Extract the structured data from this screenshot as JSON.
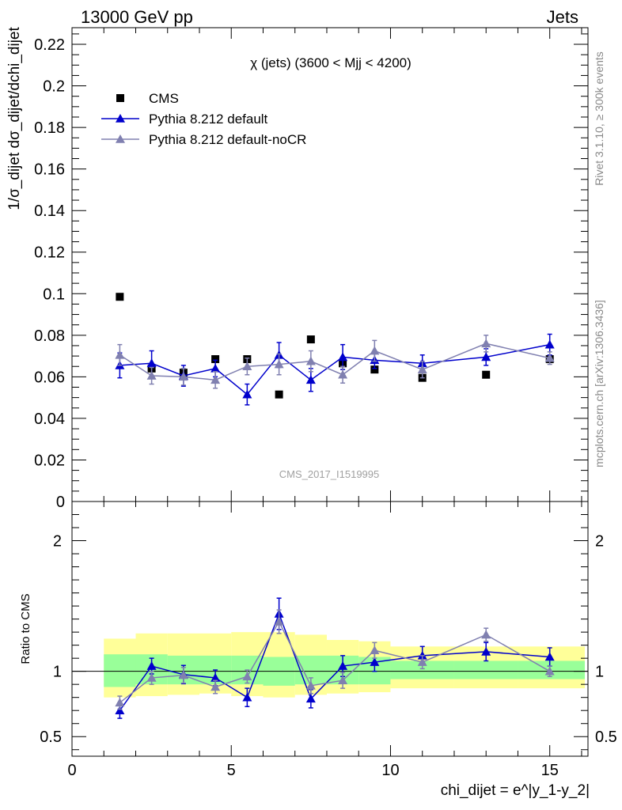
{
  "header": {
    "left": "13000 GeV pp",
    "right": "Jets"
  },
  "side_text": {
    "rivet": "Rivet 3.1.10, ≥ 300k events",
    "mcplots": "mcplots.cern.ch [arXiv:1306.3436]"
  },
  "chart_data": {
    "type": "scatter",
    "title": "χ (jets) (3600 < Mjj < 4200)",
    "watermark": "CMS_2017_I1519995",
    "xlabel": "chi_dijet = e^|y_1-y_2|",
    "ylabel": "1/σ_dijet dσ_dijet/dchi_dijet",
    "ratio_ylabel": "Ratio to CMS",
    "xlim": [
      0,
      16.2
    ],
    "ylim": [
      0,
      0.228
    ],
    "ratio_ylim": [
      0.35,
      2.3
    ],
    "x_ticks": [
      0,
      5,
      10,
      15
    ],
    "y_ticks": [
      0,
      0.02,
      0.04,
      0.06,
      0.08,
      0.1,
      0.12,
      0.14,
      0.16,
      0.18,
      0.2,
      0.22
    ],
    "y_tick_labels": [
      "0",
      "0.02",
      "0.04",
      "0.06",
      "0.08",
      "0.1",
      "0.12",
      "0.14",
      "0.16",
      "0.18",
      "0.2",
      "0.22"
    ],
    "ratio_ticks": [
      0.5,
      1,
      2
    ],
    "ratio_tick_labels": [
      "0.5",
      "1",
      "2"
    ],
    "legend_position": "top-left",
    "bins": [
      [
        1,
        2
      ],
      [
        2,
        3
      ],
      [
        3,
        4
      ],
      [
        4,
        5
      ],
      [
        5,
        6
      ],
      [
        6,
        7
      ],
      [
        7,
        8
      ],
      [
        8,
        9
      ],
      [
        9,
        10
      ],
      [
        10,
        12
      ],
      [
        12,
        14
      ],
      [
        14,
        16.1
      ]
    ],
    "x": [
      1.5,
      2.5,
      3.5,
      4.5,
      5.5,
      6.5,
      7.5,
      8.5,
      9.5,
      11,
      13,
      15
    ],
    "series": [
      {
        "name": "CMS",
        "marker": "square",
        "color": "#000000",
        "values": [
          0.0985,
          0.064,
          0.062,
          0.0685,
          0.0685,
          0.0515,
          0.078,
          0.0665,
          0.0635,
          0.0595,
          0.061,
          0.0685
        ]
      },
      {
        "name": "Pythia 8.212 default",
        "marker": "triangle",
        "color": "#0000cc",
        "values": [
          0.0655,
          0.0665,
          0.0605,
          0.064,
          0.0515,
          0.0705,
          0.0585,
          0.0695,
          0.068,
          0.0665,
          0.0695,
          0.0755
        ],
        "errors": [
          0.006,
          0.006,
          0.005,
          0.004,
          0.005,
          0.006,
          0.0055,
          0.006,
          0.004,
          0.004,
          0.004,
          0.005
        ],
        "ratio": [
          0.7,
          1.04,
          0.975,
          0.95,
          0.8,
          1.44,
          0.79,
          1.04,
          1.07,
          1.12,
          1.15,
          1.11
        ],
        "ratio_errors": [
          0.06,
          0.06,
          0.07,
          0.06,
          0.07,
          0.12,
          0.07,
          0.08,
          0.07,
          0.07,
          0.07,
          0.07
        ]
      },
      {
        "name": "Pythia 8.212 default-noCR",
        "marker": "triangle",
        "color": "#8080b0",
        "values": [
          0.0705,
          0.0605,
          0.06,
          0.0585,
          0.065,
          0.066,
          0.0675,
          0.061,
          0.0725,
          0.0635,
          0.076,
          0.069
        ],
        "errors": [
          0.005,
          0.004,
          0.004,
          0.004,
          0.004,
          0.005,
          0.005,
          0.004,
          0.005,
          0.004,
          0.004,
          0.003
        ],
        "ratio": [
          0.76,
          0.95,
          0.97,
          0.88,
          0.96,
          1.38,
          0.89,
          0.93,
          1.16,
          1.07,
          1.28,
          1.0
        ],
        "ratio_errors": [
          0.05,
          0.05,
          0.06,
          0.05,
          0.05,
          0.09,
          0.06,
          0.06,
          0.06,
          0.05,
          0.05,
          0.04
        ]
      }
    ],
    "ratio_band": {
      "inner_color": "#99ff99",
      "outer_color": "#ffff99",
      "inner": [
        [
          0.88,
          1.13
        ],
        [
          0.9,
          1.13
        ],
        [
          0.9,
          1.12
        ],
        [
          0.9,
          1.12
        ],
        [
          0.9,
          1.12
        ],
        [
          0.89,
          1.11
        ],
        [
          0.9,
          1.12
        ],
        [
          0.9,
          1.12
        ],
        [
          0.9,
          1.11
        ],
        [
          0.94,
          1.08
        ],
        [
          0.94,
          1.08
        ],
        [
          0.94,
          1.08
        ]
      ],
      "outer": [
        [
          0.8,
          1.25
        ],
        [
          0.81,
          1.29
        ],
        [
          0.82,
          1.29
        ],
        [
          0.83,
          1.29
        ],
        [
          0.81,
          1.3
        ],
        [
          0.8,
          1.3
        ],
        [
          0.82,
          1.28
        ],
        [
          0.83,
          1.24
        ],
        [
          0.84,
          1.23
        ],
        [
          0.87,
          1.19
        ],
        [
          0.87,
          1.19
        ],
        [
          0.87,
          1.19
        ]
      ]
    }
  }
}
